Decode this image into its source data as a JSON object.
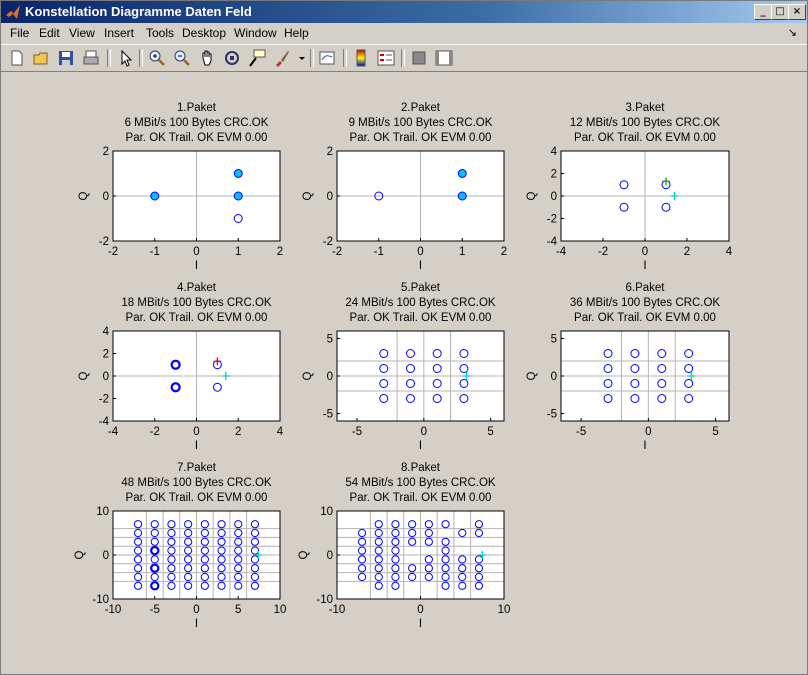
{
  "window": {
    "title": "Konstellation Diagramme Daten Feld"
  },
  "menu": [
    "File",
    "Edit",
    "View",
    "Insert",
    "Tools",
    "Desktop",
    "Window",
    "Help"
  ],
  "toolbar_icons": [
    "new-file-icon",
    "open-folder-icon",
    "save-icon",
    "print-icon",
    "pointer-icon",
    "zoom-in-icon",
    "zoom-out-icon",
    "pan-hand-icon",
    "rotate-3d-icon",
    "data-cursor-icon",
    "brush-icon",
    "brush-dropdown-icon",
    "link-plot-icon",
    "colorbar-icon",
    "legend-icon",
    "hide-plot-tools-icon",
    "show-plot-tools-icon"
  ],
  "colors": {
    "marker": "#0000ff",
    "fill_marker": "#00bfff",
    "grid": "#b4b4b4",
    "axes_bg": "#ffffff",
    "figure_bg": "#d4d0c8",
    "cross_red": "#ff0000",
    "cross_green": "#00c000",
    "cross_cyan": "#00d0d0"
  },
  "plots": [
    {
      "title": [
        "1.Paket",
        "6 MBit/s 100 Bytes CRC.OK",
        "Par. OK Trail. OK EVM 0.00"
      ],
      "xlabel": "I",
      "ylabel": "Q",
      "xlim": [
        -2,
        2
      ],
      "ylim": [
        -2,
        2
      ],
      "xticks": [
        -2,
        -1,
        0,
        1,
        2
      ],
      "yticks": [
        -2,
        0,
        2
      ],
      "gx": [
        0
      ],
      "gy": [
        0
      ],
      "points": [
        [
          -1,
          0,
          1
        ],
        [
          1,
          1,
          1
        ],
        [
          1,
          0,
          1
        ],
        [
          1,
          -1,
          0
        ]
      ],
      "cross": null
    },
    {
      "title": [
        "2.Paket",
        "9 MBit/s 100 Bytes CRC.OK",
        "Par. OK Trail. OK EVM 0.00"
      ],
      "xlabel": "I",
      "ylabel": "Q",
      "xlim": [
        -2,
        2
      ],
      "ylim": [
        -2,
        2
      ],
      "xticks": [
        -2,
        -1,
        0,
        1,
        2
      ],
      "yticks": [
        -2,
        0,
        2
      ],
      "gx": [
        0
      ],
      "gy": [
        0
      ],
      "points": [
        [
          -1,
          0,
          0
        ],
        [
          1,
          1,
          1
        ],
        [
          1,
          0,
          1
        ]
      ],
      "cross": null
    },
    {
      "title": [
        "3.Paket",
        "12 MBit/s 100 Bytes CRC.OK",
        "Par. OK Trail. OK EVM 0.00"
      ],
      "xlabel": "I",
      "ylabel": "Q",
      "xlim": [
        -4,
        4
      ],
      "ylim": [
        -4,
        4
      ],
      "xticks": [
        -4,
        -2,
        0,
        2,
        4
      ],
      "yticks": [
        -4,
        -2,
        0,
        2,
        4
      ],
      "gx": [
        0
      ],
      "gy": [
        0
      ],
      "points": [
        [
          -1,
          1,
          0
        ],
        [
          -1,
          -1,
          0
        ],
        [
          1,
          1,
          0
        ],
        [
          1,
          -1,
          0
        ]
      ],
      "cross": [
        [
          1.4,
          0,
          "cross_cyan"
        ],
        [
          1,
          1.3,
          "cross_green"
        ]
      ]
    },
    {
      "title": [
        "4.Paket",
        "18 MBit/s 100 Bytes CRC.OK",
        "Par. OK Trail. OK EVM 0.00"
      ],
      "xlabel": "I",
      "ylabel": "Q",
      "xlim": [
        -4,
        4
      ],
      "ylim": [
        -4,
        4
      ],
      "xticks": [
        -4,
        -2,
        0,
        2,
        4
      ],
      "yticks": [
        -4,
        -2,
        0,
        2,
        4
      ],
      "gx": [
        0
      ],
      "gy": [
        0
      ],
      "points": [
        [
          -1,
          1,
          2
        ],
        [
          -1,
          -1,
          2
        ],
        [
          1,
          1,
          0
        ],
        [
          1,
          -1,
          0
        ]
      ],
      "cross": [
        [
          1.4,
          0,
          "cross_cyan"
        ],
        [
          1,
          1.3,
          "cross_red"
        ]
      ]
    },
    {
      "title": [
        "5.Paket",
        "24 MBit/s 100 Bytes CRC.OK",
        "Par. OK Trail. OK EVM 0.00"
      ],
      "xlabel": "I",
      "ylabel": "Q",
      "xlim": [
        -6.5,
        6
      ],
      "ylim": [
        -6,
        6
      ],
      "xticks": [
        -5,
        0,
        5
      ],
      "yticks": [
        -5,
        0,
        5
      ],
      "gx": [
        -2,
        0,
        2
      ],
      "gy": [
        -2,
        0,
        2
      ],
      "points": [
        [
          -3,
          3,
          0
        ],
        [
          -1,
          3,
          0
        ],
        [
          1,
          3,
          0
        ],
        [
          3,
          3,
          0
        ],
        [
          -3,
          1,
          0
        ],
        [
          -1,
          1,
          0
        ],
        [
          1,
          1,
          0
        ],
        [
          3,
          1,
          0
        ],
        [
          -3,
          -1,
          0
        ],
        [
          -1,
          -1,
          0
        ],
        [
          1,
          -1,
          0
        ],
        [
          3,
          -1,
          0
        ],
        [
          -3,
          -3,
          0
        ],
        [
          -1,
          -3,
          0
        ],
        [
          1,
          -3,
          0
        ],
        [
          3,
          -3,
          0
        ]
      ],
      "cross": [
        [
          3.2,
          0,
          "cross_cyan"
        ]
      ]
    },
    {
      "title": [
        "6.Paket",
        "36 MBit/s 100 Bytes CRC.OK",
        "Par. OK Trail. OK EVM 0.00"
      ],
      "xlabel": "I",
      "ylabel": "Q",
      "xlim": [
        -6.5,
        6
      ],
      "ylim": [
        -6,
        6
      ],
      "xticks": [
        -5,
        0,
        5
      ],
      "yticks": [
        -5,
        0,
        5
      ],
      "gx": [
        -2,
        0,
        2
      ],
      "gy": [
        -2,
        0,
        2
      ],
      "points": [
        [
          -3,
          3,
          0
        ],
        [
          -1,
          3,
          0
        ],
        [
          1,
          3,
          0
        ],
        [
          3,
          3,
          0
        ],
        [
          -3,
          1,
          0
        ],
        [
          -1,
          1,
          0
        ],
        [
          1,
          1,
          0
        ],
        [
          3,
          1,
          0
        ],
        [
          -3,
          -1,
          0
        ],
        [
          -1,
          -1,
          0
        ],
        [
          1,
          -1,
          0
        ],
        [
          3,
          -1,
          0
        ],
        [
          -3,
          -3,
          0
        ],
        [
          -1,
          -3,
          0
        ],
        [
          1,
          -3,
          0
        ],
        [
          3,
          -3,
          0
        ]
      ],
      "cross": [
        [
          3.2,
          0,
          "cross_cyan"
        ]
      ]
    },
    {
      "title": [
        "7.Paket",
        "48 MBit/s 100 Bytes CRC.OK",
        "Par. OK Trail. OK EVM 0.00"
      ],
      "xlabel": "I",
      "ylabel": "Q",
      "xlim": [
        -10,
        10
      ],
      "ylim": [
        -10,
        10
      ],
      "xticks": [
        -10,
        -5,
        0,
        5,
        10
      ],
      "yticks": [
        -10,
        0,
        10
      ],
      "gx": [
        -6,
        -4,
        -2,
        0,
        2,
        4,
        6
      ],
      "gy": [
        -6,
        -4,
        -2,
        0,
        2,
        4,
        6
      ],
      "points": "qam64",
      "skip": [],
      "double": [
        [
          -5,
          1
        ],
        [
          -5,
          -3
        ],
        [
          -5,
          -7
        ]
      ],
      "cross": [
        [
          7.4,
          0,
          "cross_cyan"
        ]
      ]
    },
    {
      "title": [
        "8.Paket",
        "54 MBit/s 100 Bytes CRC.OK",
        "Par. OK Trail. OK EVM 0.00"
      ],
      "xlabel": "I",
      "ylabel": "Q",
      "xlim": [
        -10,
        10
      ],
      "ylim": [
        -10,
        10
      ],
      "xticks": [
        -10,
        0,
        10
      ],
      "yticks": [
        -10,
        0,
        10
      ],
      "gx": [
        -6,
        -4,
        -2,
        0,
        2,
        4,
        6
      ],
      "gy": [
        -6,
        -4,
        -2,
        0,
        2,
        4,
        6
      ],
      "points": "qam64",
      "skip": [
        [
          -7,
          7
        ],
        [
          -7,
          -7
        ],
        [
          5,
          3
        ],
        [
          5,
          1
        ],
        [
          7,
          3
        ],
        [
          7,
          1
        ],
        [
          1,
          1
        ],
        [
          -1,
          1
        ],
        [
          -1,
          -1
        ],
        [
          -1,
          -7
        ],
        [
          1,
          -7
        ],
        [
          3,
          5
        ],
        [
          5,
          7
        ]
      ],
      "double": [],
      "cross": [
        [
          7.4,
          0,
          "cross_cyan"
        ]
      ]
    }
  ]
}
